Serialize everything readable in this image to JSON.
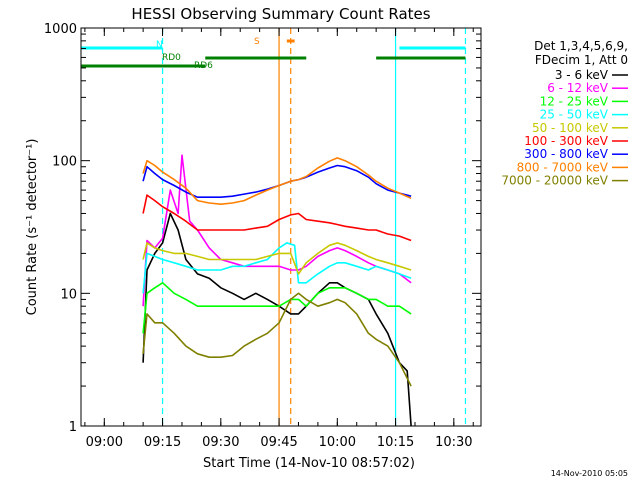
{
  "chart_data": {
    "type": "line",
    "title": "HESSI Observing Summary Count Rates",
    "xlabel": "Start Time (14-Nov-10 08:57:02)",
    "ylabel": "Count Rate (s⁻¹ detector⁻¹)",
    "yscale": "log",
    "ylim": [
      1,
      1000
    ],
    "xlim": [
      "08:54",
      "10:37"
    ],
    "x_ticks": [
      "09:00",
      "09:15",
      "09:30",
      "09:45",
      "10:00",
      "10:15",
      "10:30"
    ],
    "y_ticks": [
      "1",
      "10",
      "100",
      "1000"
    ],
    "timestamp": "14-Nov-2010 05:05",
    "legend_header": [
      "Det 1,3,4,5,6,9,",
      "FDecim 1, Att 0"
    ],
    "bars": [
      {
        "label": "N",
        "color": "#00ffff",
        "segments": [
          [
            "08:54",
            "09:15"
          ],
          [
            "10:16",
            "10:33"
          ]
        ]
      },
      {
        "label": "S",
        "color": "#ff8000",
        "segments": [
          [
            "09:47",
            "09:49"
          ]
        ]
      },
      {
        "label": "RD0",
        "color": "#008000",
        "segments": [
          [
            "09:26",
            "09:52"
          ],
          [
            "10:10",
            "10:33"
          ]
        ]
      },
      {
        "label": "RD6",
        "color": "#008000",
        "segments": [
          [
            "08:54",
            "09:26"
          ]
        ]
      }
    ],
    "vlines": [
      {
        "t": "09:15",
        "color": "#00ffff",
        "dash": true
      },
      {
        "t": "09:45",
        "color": "#ff8000",
        "dash": false
      },
      {
        "t": "09:48",
        "color": "#ff8000",
        "dash": true
      },
      {
        "t": "10:15",
        "color": "#00ffff",
        "dash": false
      },
      {
        "t": "10:33",
        "color": "#00ffff",
        "dash": true
      }
    ],
    "series": [
      {
        "name": "3 - 6 keV",
        "color": "#000000",
        "t": [
          "09:10",
          "09:11",
          "09:13",
          "09:15",
          "09:17",
          "09:19",
          "09:21",
          "09:24",
          "09:27",
          "09:30",
          "09:33",
          "09:36",
          "09:39",
          "09:42",
          "09:45",
          "09:48",
          "09:50",
          "09:52",
          "09:55",
          "09:58",
          "10:00",
          "10:02",
          "10:05",
          "10:08",
          "10:10",
          "10:13",
          "10:16",
          "10:18",
          "10:19"
        ],
        "v": [
          3,
          15,
          20,
          24,
          40,
          30,
          18,
          14,
          13,
          11,
          10,
          9,
          10,
          9,
          8,
          7,
          7,
          8,
          10,
          12,
          12,
          11,
          10,
          9,
          7,
          5,
          3,
          2.6,
          1
        ]
      },
      {
        "name": "6 - 12 keV",
        "color": "#ff00ff",
        "t": [
          "09:10",
          "09:11",
          "09:13",
          "09:15",
          "09:17",
          "09:19",
          "09:20",
          "09:22",
          "09:24",
          "09:27",
          "09:30",
          "09:33",
          "09:36",
          "09:39",
          "09:42",
          "09:45",
          "09:48",
          "09:50",
          "09:52",
          "09:55",
          "09:58",
          "10:00",
          "10:02",
          "10:05",
          "10:08",
          "10:10",
          "10:13",
          "10:16",
          "10:19"
        ],
        "v": [
          8,
          25,
          22,
          26,
          60,
          40,
          110,
          35,
          30,
          22,
          18,
          17,
          16,
          16,
          16,
          16,
          15,
          15,
          16,
          19,
          21,
          22,
          21,
          19,
          17,
          16,
          15,
          14,
          12
        ]
      },
      {
        "name": "12 - 25 keV",
        "color": "#00ff00",
        "t": [
          "09:10",
          "09:11",
          "09:13",
          "09:15",
          "09:18",
          "09:21",
          "09:24",
          "09:27",
          "09:30",
          "09:33",
          "09:36",
          "09:39",
          "09:42",
          "09:45",
          "09:48",
          "09:50",
          "09:52",
          "09:55",
          "09:58",
          "10:00",
          "10:02",
          "10:05",
          "10:08",
          "10:10",
          "10:13",
          "10:16",
          "10:19"
        ],
        "v": [
          5,
          10,
          11,
          12,
          10,
          9,
          8,
          8,
          8,
          8,
          8,
          8,
          8,
          8,
          9,
          9,
          8,
          10,
          11,
          11,
          11,
          10,
          9,
          9,
          8,
          8,
          7
        ]
      },
      {
        "name": "25 - 50 keV",
        "color": "#00ffff",
        "t": [
          "09:10",
          "09:11",
          "09:13",
          "09:15",
          "09:18",
          "09:21",
          "09:24",
          "09:27",
          "09:30",
          "09:33",
          "09:36",
          "09:39",
          "09:42",
          "09:45",
          "09:47",
          "09:49",
          "09:50",
          "09:52",
          "09:55",
          "09:58",
          "10:00",
          "10:02",
          "10:05",
          "10:08",
          "10:10",
          "10:13",
          "10:16",
          "10:19"
        ],
        "v": [
          10,
          20,
          19,
          18,
          17,
          16,
          15,
          15,
          15,
          16,
          16,
          17,
          18,
          22,
          24,
          23,
          12,
          12,
          14,
          16,
          17,
          17,
          16,
          15,
          16,
          15,
          14,
          13
        ]
      },
      {
        "name": "50 - 100 keV",
        "color": "#c8c800",
        "t": [
          "09:10",
          "09:11",
          "09:13",
          "09:15",
          "09:18",
          "09:21",
          "09:24",
          "09:27",
          "09:30",
          "09:33",
          "09:36",
          "09:39",
          "09:42",
          "09:45",
          "09:48",
          "09:50",
          "09:52",
          "09:55",
          "09:58",
          "10:00",
          "10:02",
          "10:05",
          "10:08",
          "10:10",
          "10:13",
          "10:16",
          "10:19"
        ],
        "v": [
          18,
          24,
          22,
          21,
          20,
          20,
          19,
          18,
          18,
          18,
          18,
          18,
          19,
          20,
          20,
          14,
          17,
          20,
          23,
          24,
          23,
          21,
          19,
          18,
          17,
          16,
          15
        ]
      },
      {
        "name": "100 - 300 keV",
        "color": "#ff0000",
        "t": [
          "09:10",
          "09:11",
          "09:13",
          "09:15",
          "09:18",
          "09:21",
          "09:24",
          "09:27",
          "09:30",
          "09:33",
          "09:36",
          "09:39",
          "09:42",
          "09:45",
          "09:48",
          "09:50",
          "09:52",
          "09:55",
          "09:58",
          "10:00",
          "10:02",
          "10:05",
          "10:08",
          "10:10",
          "10:13",
          "10:16",
          "10:19"
        ],
        "v": [
          40,
          55,
          50,
          45,
          40,
          35,
          30,
          30,
          30,
          30,
          30,
          31,
          32,
          36,
          39,
          40,
          36,
          35,
          34,
          33,
          32,
          31,
          30,
          30,
          28,
          27,
          25
        ]
      },
      {
        "name": "300 - 800 keV",
        "color": "#0000ff",
        "t": [
          "09:10",
          "09:11",
          "09:13",
          "09:15",
          "09:18",
          "09:21",
          "09:24",
          "09:27",
          "09:30",
          "09:33",
          "09:36",
          "09:39",
          "09:42",
          "09:45",
          "09:48",
          "09:50",
          "09:52",
          "09:55",
          "09:58",
          "10:00",
          "10:02",
          "10:05",
          "10:08",
          "10:10",
          "10:13",
          "10:16",
          "10:19"
        ],
        "v": [
          70,
          90,
          80,
          72,
          65,
          58,
          53,
          53,
          53,
          54,
          56,
          58,
          61,
          65,
          70,
          72,
          75,
          82,
          88,
          92,
          90,
          84,
          75,
          67,
          60,
          57,
          54
        ]
      },
      {
        "name": "800 - 7000 keV",
        "color": "#ff8000",
        "t": [
          "09:10",
          "09:11",
          "09:13",
          "09:15",
          "09:18",
          "09:21",
          "09:24",
          "09:27",
          "09:30",
          "09:33",
          "09:36",
          "09:39",
          "09:42",
          "09:45",
          "09:48",
          "09:50",
          "09:52",
          "09:55",
          "09:58",
          "10:00",
          "10:02",
          "10:05",
          "10:08",
          "10:10",
          "10:13",
          "10:16",
          "10:19"
        ],
        "v": [
          80,
          100,
          92,
          82,
          72,
          62,
          50,
          48,
          47,
          48,
          50,
          55,
          60,
          65,
          70,
          72,
          76,
          88,
          99,
          105,
          100,
          90,
          78,
          70,
          62,
          57,
          52
        ]
      },
      {
        "name": "7000 - 20000 keV",
        "color": "#808000",
        "t": [
          "09:10",
          "09:11",
          "09:13",
          "09:15",
          "09:18",
          "09:21",
          "09:24",
          "09:27",
          "09:30",
          "09:33",
          "09:36",
          "09:39",
          "09:42",
          "09:45",
          "09:48",
          "09:50",
          "09:52",
          "09:55",
          "09:58",
          "10:00",
          "10:02",
          "10:05",
          "10:08",
          "10:10",
          "10:13",
          "10:16",
          "10:19"
        ],
        "v": [
          3.5,
          7,
          6,
          6,
          5,
          4,
          3.5,
          3.3,
          3.3,
          3.4,
          4,
          4.5,
          5,
          6,
          9,
          10,
          9,
          8,
          8.5,
          9,
          8.5,
          7,
          5,
          4.5,
          4,
          3,
          2
        ]
      }
    ]
  }
}
